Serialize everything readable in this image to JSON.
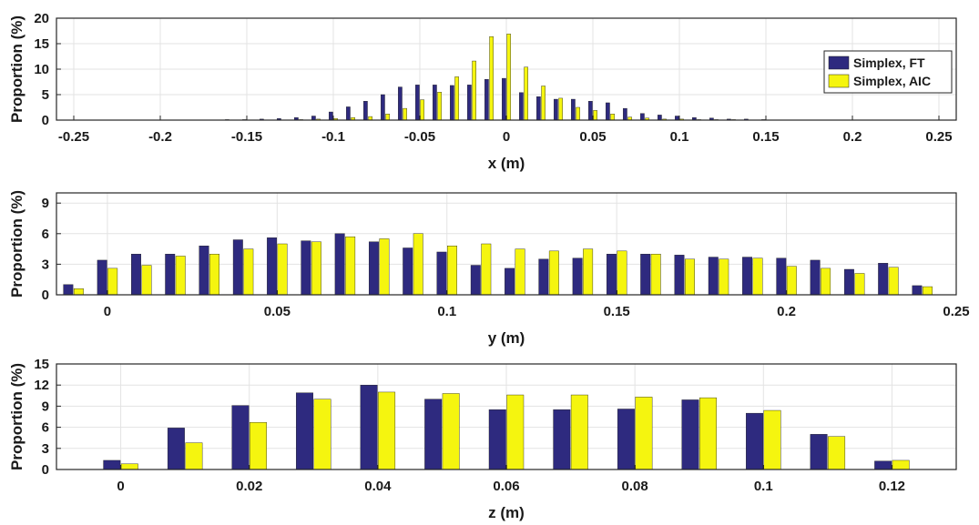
{
  "chart_data": [
    {
      "type": "bar",
      "xlabel": "x (m)",
      "ylabel": "Proportion (%)",
      "xlim": [
        -0.26,
        0.26
      ],
      "ylim": [
        0,
        20
      ],
      "xticks": [
        -0.25,
        -0.2,
        -0.15,
        -0.1,
        -0.05,
        0,
        0.05,
        0.1,
        0.15,
        0.2,
        0.25
      ],
      "xtick_labels": [
        "-0.25",
        "-0.2",
        "-0.15",
        "-0.1",
        "-0.05",
        "0",
        "0.05",
        "0.1",
        "0.15",
        "0.2",
        "0.25"
      ],
      "yticks": [
        0,
        5,
        10,
        15,
        20
      ],
      "ytick_labels": [
        "0",
        "5",
        "10",
        "15",
        "20"
      ],
      "grid": true,
      "legend": "right",
      "x": [
        -0.2,
        -0.19,
        -0.18,
        -0.17,
        -0.16,
        -0.15,
        -0.14,
        -0.13,
        -0.12,
        -0.11,
        -0.1,
        -0.09,
        -0.08,
        -0.07,
        -0.06,
        -0.05,
        -0.04,
        -0.03,
        -0.02,
        -0.01,
        0,
        0.01,
        0.02,
        0.03,
        0.04,
        0.05,
        0.06,
        0.07,
        0.08,
        0.09,
        0.1,
        0.11,
        0.12,
        0.13,
        0.14,
        0.15,
        0.16,
        0.17
      ],
      "series": [
        {
          "name": "Simplex, FT",
          "color": "#2e2a7f",
          "values": [
            0.05,
            0.05,
            0.05,
            0.05,
            0.1,
            0.1,
            0.2,
            0.3,
            0.5,
            0.8,
            1.6,
            2.6,
            3.7,
            5.0,
            6.5,
            6.9,
            6.9,
            6.8,
            6.9,
            8.0,
            8.2,
            5.4,
            4.6,
            4.1,
            4.1,
            3.7,
            3.4,
            2.3,
            1.3,
            1.0,
            0.8,
            0.5,
            0.4,
            0.2,
            0.2,
            0.1,
            0.05,
            0.05
          ]
        },
        {
          "name": "Simplex, AIC",
          "color": "#f5f50f",
          "values": [
            0.0,
            0.0,
            0.0,
            0.0,
            0.0,
            0.0,
            0.0,
            0.0,
            0.1,
            0.2,
            0.3,
            0.5,
            0.7,
            1.2,
            2.3,
            4.0,
            5.5,
            8.5,
            11.6,
            16.4,
            16.9,
            10.4,
            6.7,
            4.3,
            2.5,
            1.9,
            1.2,
            0.6,
            0.4,
            0.2,
            0.2,
            0.1,
            0.1,
            0.1,
            0.0,
            0.0,
            0.0,
            0.0
          ]
        }
      ]
    },
    {
      "type": "bar",
      "xlabel": "y (m)",
      "ylabel": "Proportion (%)",
      "xlim": [
        -0.015,
        0.25
      ],
      "ylim": [
        0,
        10
      ],
      "xticks": [
        0,
        0.05,
        0.1,
        0.15,
        0.2,
        0.25
      ],
      "xtick_labels": [
        "0",
        "0.05",
        "0.1",
        "0.15",
        "0.2",
        "0.25"
      ],
      "yticks": [
        0,
        3,
        6,
        9
      ],
      "ytick_labels": [
        "0",
        "3",
        "6",
        "9"
      ],
      "grid": true,
      "x": [
        -0.01,
        0,
        0.01,
        0.02,
        0.03,
        0.04,
        0.05,
        0.06,
        0.07,
        0.08,
        0.09,
        0.1,
        0.11,
        0.12,
        0.13,
        0.14,
        0.15,
        0.16,
        0.17,
        0.18,
        0.19,
        0.2,
        0.21,
        0.22,
        0.23,
        0.24
      ],
      "series": [
        {
          "name": "Simplex, FT",
          "color": "#2e2a7f",
          "values": [
            1.0,
            3.4,
            4.0,
            4.0,
            4.8,
            5.4,
            5.6,
            5.3,
            6.0,
            5.2,
            4.6,
            4.2,
            2.9,
            2.6,
            3.5,
            3.6,
            4.0,
            4.0,
            3.9,
            3.7,
            3.7,
            3.6,
            3.4,
            2.5,
            3.1,
            0.9
          ]
        },
        {
          "name": "Simplex, AIC",
          "color": "#f5f50f",
          "values": [
            0.6,
            2.6,
            2.9,
            3.8,
            4.0,
            4.5,
            5.0,
            5.2,
            5.7,
            5.5,
            6.0,
            4.8,
            5.0,
            4.5,
            4.3,
            4.5,
            4.3,
            4.0,
            3.5,
            3.5,
            3.6,
            2.8,
            2.6,
            2.1,
            2.7,
            0.8
          ]
        }
      ]
    },
    {
      "type": "bar",
      "xlabel": "z (m)",
      "ylabel": "Proportion (%)",
      "xlim": [
        -0.01,
        0.13
      ],
      "ylim": [
        0,
        15
      ],
      "xticks": [
        0,
        0.02,
        0.04,
        0.06,
        0.08,
        0.1,
        0.12
      ],
      "xtick_labels": [
        "0",
        "0.02",
        "0.04",
        "0.06",
        "0.08",
        "0.1",
        "0.12"
      ],
      "yticks": [
        0,
        3,
        6,
        9,
        12,
        15
      ],
      "ytick_labels": [
        "0",
        "3",
        "6",
        "9",
        "12",
        "15"
      ],
      "grid": true,
      "x": [
        0,
        0.01,
        0.02,
        0.03,
        0.04,
        0.05,
        0.06,
        0.07,
        0.08,
        0.09,
        0.1,
        0.11,
        0.12
      ],
      "series": [
        {
          "name": "Simplex, FT",
          "color": "#2e2a7f",
          "values": [
            1.3,
            5.9,
            9.1,
            10.9,
            12.0,
            10.0,
            8.5,
            8.5,
            8.6,
            9.9,
            8.0,
            5.0,
            1.2
          ]
        },
        {
          "name": "Simplex, AIC",
          "color": "#f5f50f",
          "values": [
            0.8,
            3.8,
            6.7,
            10.0,
            11.0,
            10.8,
            10.6,
            10.6,
            10.3,
            10.2,
            8.4,
            4.7,
            1.3
          ]
        }
      ]
    }
  ]
}
